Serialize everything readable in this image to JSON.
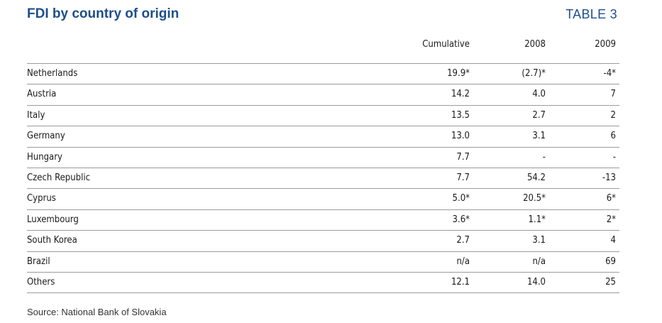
{
  "title": "FDI by country of origin",
  "table_label": "TABLE 3",
  "columns": [
    "Cumulative",
    "2008",
    "2009"
  ],
  "rows": [
    {
      "country": "Netherlands",
      "cumulative": "19.9*",
      "y2008": "(2.7)*",
      "y2009": "-4*"
    },
    {
      "country": "Austria",
      "cumulative": "14.2",
      "y2008": "4.0",
      "y2009": "7"
    },
    {
      "country": "Italy",
      "cumulative": "13.5",
      "y2008": "2.7",
      "y2009": "2"
    },
    {
      "country": "Germany",
      "cumulative": "13.0",
      "y2008": "3.1",
      "y2009": "6"
    },
    {
      "country": "Hungary",
      "cumulative": "7.7",
      "y2008": "-",
      "y2009": "-"
    },
    {
      "country": "Czech Republic",
      "cumulative": "7.7",
      "y2008": "54.2",
      "y2009": "-13"
    },
    {
      "country": "Cyprus",
      "cumulative": "5.0*",
      "y2008": "20.5*",
      "y2009": "6*"
    },
    {
      "country": "Luxembourg",
      "cumulative": "3.6*",
      "y2008": "1.1*",
      "y2009": "2*"
    },
    {
      "country": "South Korea",
      "cumulative": "2.7",
      "y2008": "3.1",
      "y2009": "4"
    },
    {
      "country": "Brazil",
      "cumulative": "n/a",
      "y2008": "n/a",
      "y2009": "69"
    },
    {
      "country": "Others",
      "cumulative": "12.1",
      "y2008": "14.0",
      "y2009": "25"
    }
  ],
  "source": "Source: National Bank of Slovakia",
  "colors": {
    "title": "#1f4e8c",
    "rule": "#9b9b9b"
  }
}
